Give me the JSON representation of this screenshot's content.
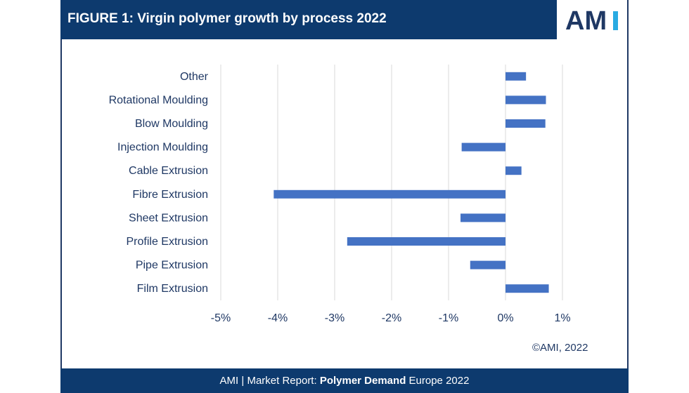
{
  "header": {
    "title": "FIGURE 1: Virgin polymer growth by process 2022",
    "logo_text": "AMI"
  },
  "footer": {
    "prefix": "AMI | Market Report: ",
    "bold": "Polymer Demand",
    "suffix": " Europe 2022"
  },
  "copyright": "©AMI, 2022",
  "colors": {
    "bar": "#4472c4",
    "header": "#0d3a6e",
    "text": "#1f3864",
    "logo_dark": "#1f3864",
    "logo_accent": "#29abe2"
  },
  "chart_data": {
    "type": "bar",
    "orientation": "horizontal",
    "title": "FIGURE 1: Virgin polymer growth by process 2022",
    "categories": [
      "Other",
      "Rotational Moulding",
      "Blow Moulding",
      "Injection Moulding",
      "Cable Extrusion",
      "Fibre Extrusion",
      "Sheet Extrusion",
      "Profile Extrusion",
      "Pipe Extrusion",
      "Film Extrusion"
    ],
    "values": [
      0.36,
      0.71,
      0.7,
      -0.77,
      0.28,
      -4.07,
      -0.79,
      -2.78,
      -0.62,
      0.76
    ],
    "unit": "%",
    "xlim": [
      -5,
      1
    ],
    "xticks": [
      "-5%",
      "-4%",
      "-3%",
      "-2%",
      "-1%",
      "0%",
      "1%"
    ],
    "grid": true,
    "legend": "none"
  }
}
